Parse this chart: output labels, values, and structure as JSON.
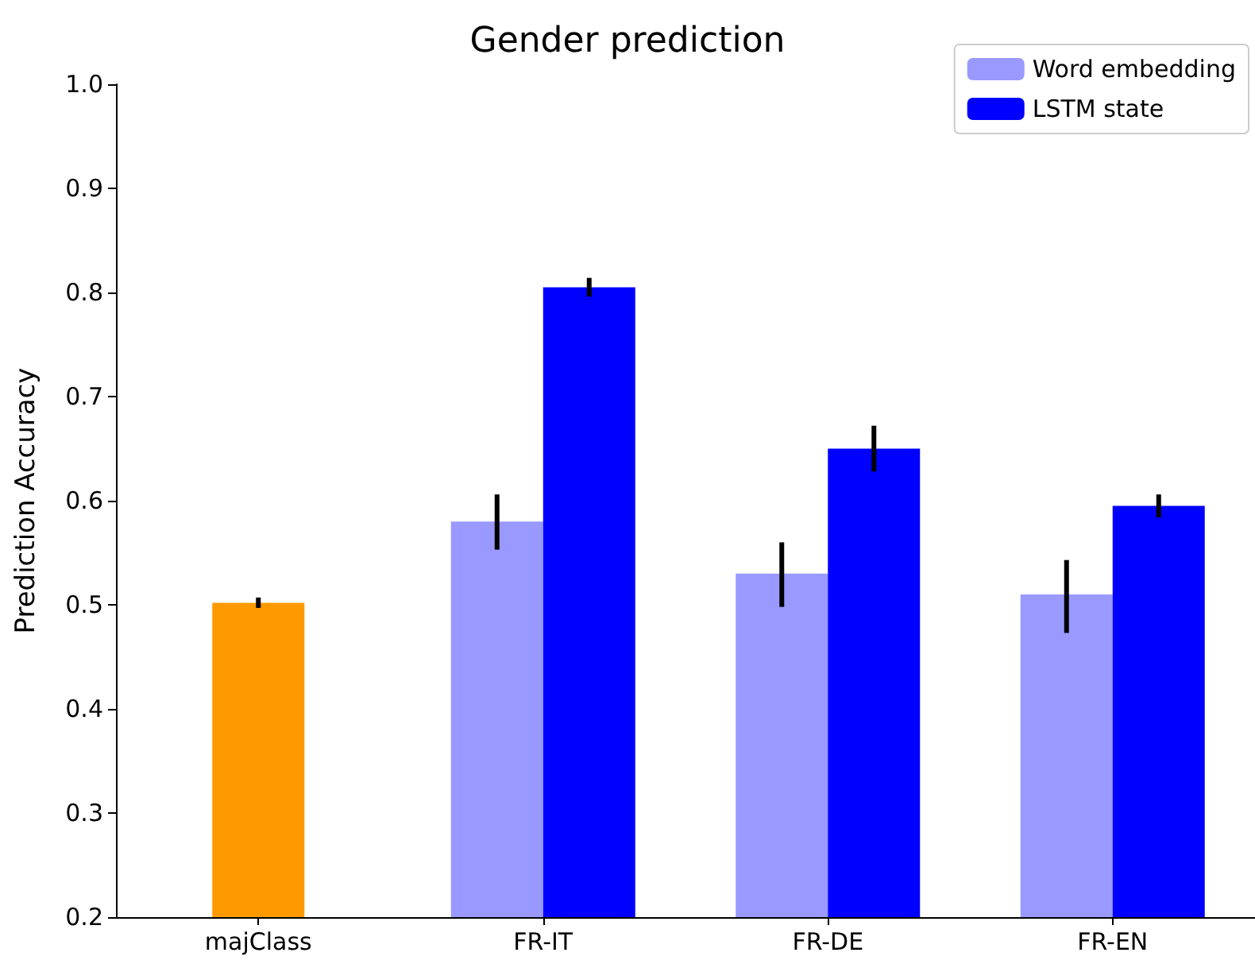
{
  "chart_data": {
    "type": "bar",
    "title": "Gender prediction",
    "ylabel": "Prediction Accuracy",
    "categories": [
      "majClass",
      "FR-IT",
      "FR-DE",
      "FR-EN"
    ],
    "series": [
      {
        "name": "Word embedding",
        "color": "#9999ff",
        "values": [
          null,
          0.58,
          0.53,
          0.51
        ],
        "errors": [
          null,
          [
            0.553,
            0.606
          ],
          [
            0.498,
            0.56
          ],
          [
            0.473,
            0.543
          ]
        ]
      },
      {
        "name": "LSTM state",
        "color": "#0000ff",
        "values": [
          null,
          0.805,
          0.65,
          0.595
        ],
        "errors": [
          null,
          [
            0.796,
            0.814
          ],
          [
            0.628,
            0.672
          ],
          [
            0.584,
            0.606
          ]
        ]
      },
      {
        "color": "#ff9900",
        "values": [
          0.502,
          null,
          null,
          null
        ],
        "errors": [
          [
            0.497,
            0.507
          ],
          null,
          null,
          null
        ]
      }
    ],
    "ylim": [
      0.2,
      1.0
    ],
    "yticks": [
      0.2,
      0.3,
      0.4,
      0.5,
      0.6,
      0.7,
      0.8,
      0.9,
      {
        "value": 1.0,
        "label": "1.0"
      }
    ],
    "grid": false,
    "legend": "top right"
  }
}
